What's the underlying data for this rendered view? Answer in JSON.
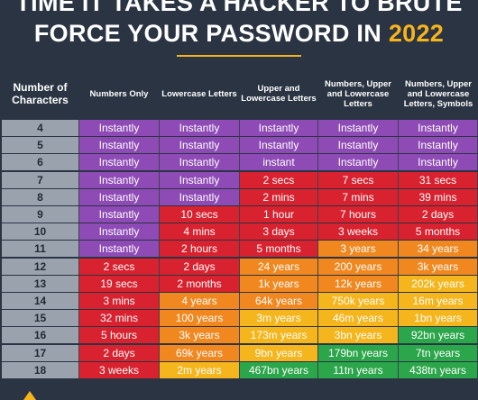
{
  "title_line1": "TIME IT TAKES A HACKER TO BRUTE",
  "title_line2_prefix": "FORCE YOUR PASSWORD IN",
  "title_year": "2022",
  "headers": [
    "Number of Characters",
    "Numbers Only",
    "Lowercase Letters",
    "Upper and Lowercase Letters",
    "Numbers, Upper and Lowercase Letters",
    "Numbers, Upper and Lowercase Letters, Symbols"
  ],
  "colors": {
    "purple": "#8e4bb5",
    "red": "#d8222f",
    "orange": "#f0871f",
    "yellow": "#f5b51c",
    "green": "#2ba64a",
    "number_col": "#9aa3ad",
    "background": "#2a3442"
  },
  "rows": [
    {
      "n": "4",
      "cells": [
        "Instantly",
        "Instantly",
        "Instantly",
        "Instantly",
        "Instantly"
      ],
      "colors": [
        "purple",
        "purple",
        "purple",
        "purple",
        "purple"
      ]
    },
    {
      "n": "5",
      "cells": [
        "Instantly",
        "Instantly",
        "Instantly",
        "Instantly",
        "Instantly"
      ],
      "colors": [
        "purple",
        "purple",
        "purple",
        "purple",
        "purple"
      ]
    },
    {
      "n": "6",
      "cells": [
        "Instantly",
        "Instantly",
        "instant",
        "Instantly",
        "Instantly"
      ],
      "colors": [
        "purple",
        "purple",
        "purple",
        "purple",
        "purple"
      ]
    },
    {
      "n": "7",
      "cells": [
        "Instantly",
        "Instantly",
        "2 secs",
        "7 secs",
        "31 secs"
      ],
      "colors": [
        "purple",
        "purple",
        "red",
        "red",
        "red"
      ]
    },
    {
      "n": "8",
      "cells": [
        "Instantly",
        "Instantly",
        "2 mins",
        "7 mins",
        "39 mins"
      ],
      "colors": [
        "purple",
        "purple",
        "red",
        "red",
        "red"
      ]
    },
    {
      "n": "9",
      "cells": [
        "Instantly",
        "10 secs",
        "1 hour",
        "7 hours",
        "2 days"
      ],
      "colors": [
        "purple",
        "red",
        "red",
        "red",
        "red"
      ]
    },
    {
      "n": "10",
      "cells": [
        "Instantly",
        "4 mins",
        "3 days",
        "3 weeks",
        "5 months"
      ],
      "colors": [
        "purple",
        "red",
        "red",
        "red",
        "red"
      ]
    },
    {
      "n": "11",
      "cells": [
        "Instantly",
        "2 hours",
        "5 months",
        "3 years",
        "34 years"
      ],
      "colors": [
        "purple",
        "red",
        "red",
        "orange",
        "orange"
      ]
    },
    {
      "n": "12",
      "cells": [
        "2 secs",
        "2 days",
        "24 years",
        "200 years",
        "3k years"
      ],
      "colors": [
        "red",
        "red",
        "orange",
        "orange",
        "orange"
      ]
    },
    {
      "n": "13",
      "cells": [
        "19 secs",
        "2 months",
        "1k years",
        "12k years",
        "202k years"
      ],
      "colors": [
        "red",
        "red",
        "orange",
        "orange",
        "yellow"
      ]
    },
    {
      "n": "14",
      "cells": [
        "3 mins",
        "4 years",
        "64k years",
        "750k years",
        "16m years"
      ],
      "colors": [
        "red",
        "orange",
        "orange",
        "yellow",
        "yellow"
      ]
    },
    {
      "n": "15",
      "cells": [
        "32 mins",
        "100 years",
        "3m years",
        "46m years",
        "1bn years"
      ],
      "colors": [
        "red",
        "orange",
        "yellow",
        "yellow",
        "yellow"
      ]
    },
    {
      "n": "16",
      "cells": [
        "5 hours",
        "3k years",
        "173m years",
        "3bn years",
        "92bn years"
      ],
      "colors": [
        "red",
        "orange",
        "yellow",
        "yellow",
        "green"
      ]
    },
    {
      "n": "17",
      "cells": [
        "2 days",
        "69k years",
        "9bn years",
        "179bn years",
        "7tn years"
      ],
      "colors": [
        "red",
        "orange",
        "yellow",
        "green",
        "green"
      ]
    },
    {
      "n": "18",
      "cells": [
        "3 weeks",
        "2m years",
        "467bn years",
        "11tn years",
        "438tn years"
      ],
      "colors": [
        "red",
        "yellow",
        "green",
        "green",
        "green"
      ]
    }
  ]
}
